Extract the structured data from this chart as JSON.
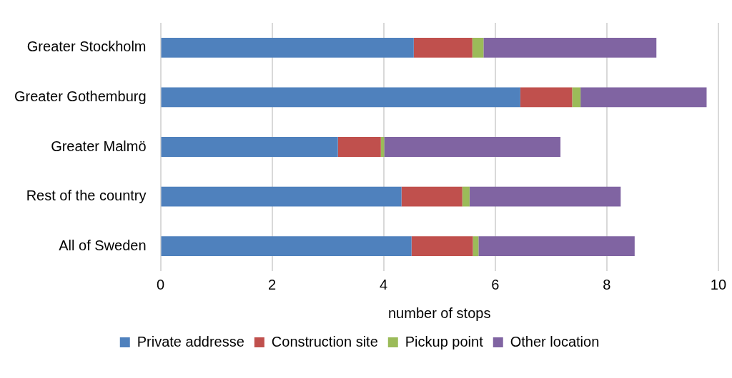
{
  "chart_data": {
    "type": "bar",
    "orientation": "horizontal",
    "stacked": true,
    "xlabel": "number of stops",
    "categories": [
      "Greater Stockholm",
      "Greater Gothemburg",
      "Greater Malmö",
      "Rest of the country",
      "All of Sweden"
    ],
    "series": [
      {
        "name": "Private addresse",
        "color": "#4f81bd",
        "values": [
          4.54,
          6.45,
          3.18,
          4.32,
          4.5
        ]
      },
      {
        "name": "Construction site",
        "color": "#c0504d",
        "values": [
          1.05,
          0.93,
          0.77,
          1.09,
          1.1
        ]
      },
      {
        "name": "Pickup point",
        "color": "#9bbb59",
        "values": [
          0.2,
          0.15,
          0.06,
          0.13,
          0.1
        ]
      },
      {
        "name": "Other location",
        "color": "#8064a2",
        "values": [
          3.1,
          2.26,
          3.16,
          2.71,
          2.8
        ]
      }
    ],
    "xlim": [
      0,
      10
    ],
    "xticks": [
      0,
      2,
      4,
      6,
      8,
      10
    ],
    "grid": "x",
    "legend": "bottom"
  }
}
